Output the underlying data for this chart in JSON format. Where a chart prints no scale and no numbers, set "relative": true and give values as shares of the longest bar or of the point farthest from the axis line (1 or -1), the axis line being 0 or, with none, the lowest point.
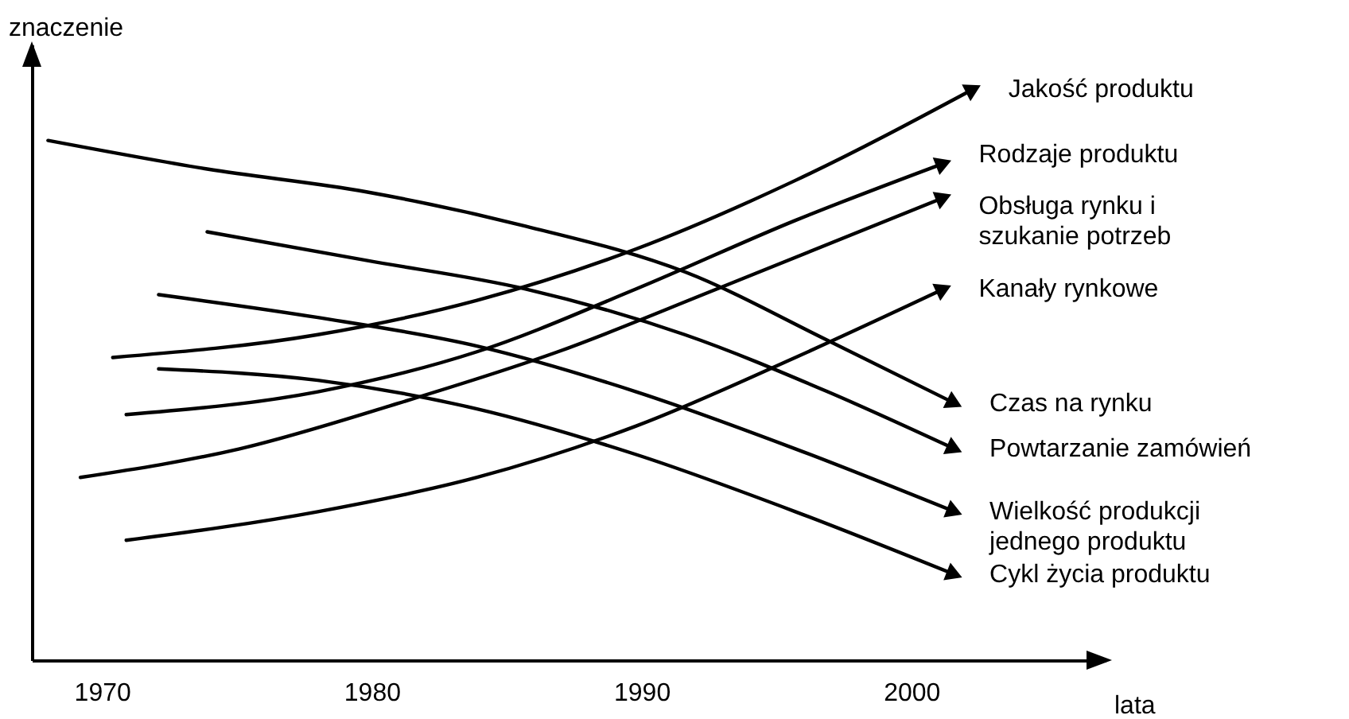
{
  "chart_data": {
    "type": "line",
    "relative": true,
    "xlabel": "lata",
    "ylabel": "znaczenie",
    "xlim": [
      1967.4,
      2007.2
    ],
    "xticks": [
      1970,
      1980,
      1990,
      2000
    ],
    "grid": false,
    "legend": false,
    "marker": "none",
    "line_style": "solid",
    "series": [
      {
        "name": "Jakość produktu",
        "color": "#000000",
        "x": [
          1970.4,
          1978.0,
          1983.9,
          1989.8,
          1995.7,
          2002.3
        ],
        "values": [
          0.53,
          0.57,
          0.63,
          0.72,
          0.84,
          1.0
        ]
      },
      {
        "name": "Rodzaje produktu",
        "color": "#000000",
        "x": [
          1970.9,
          1978.0,
          1983.9,
          1989.8,
          1995.7,
          2001.2
        ],
        "values": [
          0.43,
          0.47,
          0.54,
          0.65,
          0.77,
          0.87
        ]
      },
      {
        "name": "Obsługa rynku i\nszukanie potrzeb",
        "color": "#000000",
        "x": [
          1969.2,
          1975.1,
          1981.0,
          1986.9,
          1992.8,
          2001.2
        ],
        "values": [
          0.32,
          0.37,
          0.45,
          0.54,
          0.65,
          0.81
        ]
      },
      {
        "name": "Kanały rynkowe",
        "color": "#000000",
        "x": [
          1970.9,
          1978.0,
          1983.9,
          1989.8,
          1995.7,
          2001.2
        ],
        "values": [
          0.21,
          0.26,
          0.32,
          0.41,
          0.53,
          0.65
        ]
      },
      {
        "name": "Czas na rynku",
        "color": "#000000",
        "x": [
          1968.0,
          1973.9,
          1979.8,
          1985.7,
          1991.6,
          1996.9,
          2001.6
        ],
        "values": [
          0.91,
          0.86,
          0.82,
          0.76,
          0.68,
          0.56,
          0.45
        ]
      },
      {
        "name": "Powtarzanie zamówień",
        "color": "#000000",
        "x": [
          1973.9,
          1979.8,
          1985.7,
          1991.6,
          1996.9,
          2001.6
        ],
        "values": [
          0.75,
          0.7,
          0.65,
          0.57,
          0.47,
          0.37
        ]
      },
      {
        "name": "Wielkość produkcji\njednego produktu",
        "color": "#000000",
        "x": [
          1972.1,
          1978.0,
          1983.9,
          1989.8,
          1995.7,
          2001.6
        ],
        "values": [
          0.64,
          0.6,
          0.55,
          0.47,
          0.37,
          0.26
        ]
      },
      {
        "name": "Cykl życia produktu",
        "color": "#000000",
        "x": [
          1972.1,
          1978.0,
          1983.9,
          1989.8,
          1995.7,
          2001.6
        ],
        "values": [
          0.51,
          0.49,
          0.44,
          0.36,
          0.26,
          0.15
        ]
      }
    ]
  }
}
